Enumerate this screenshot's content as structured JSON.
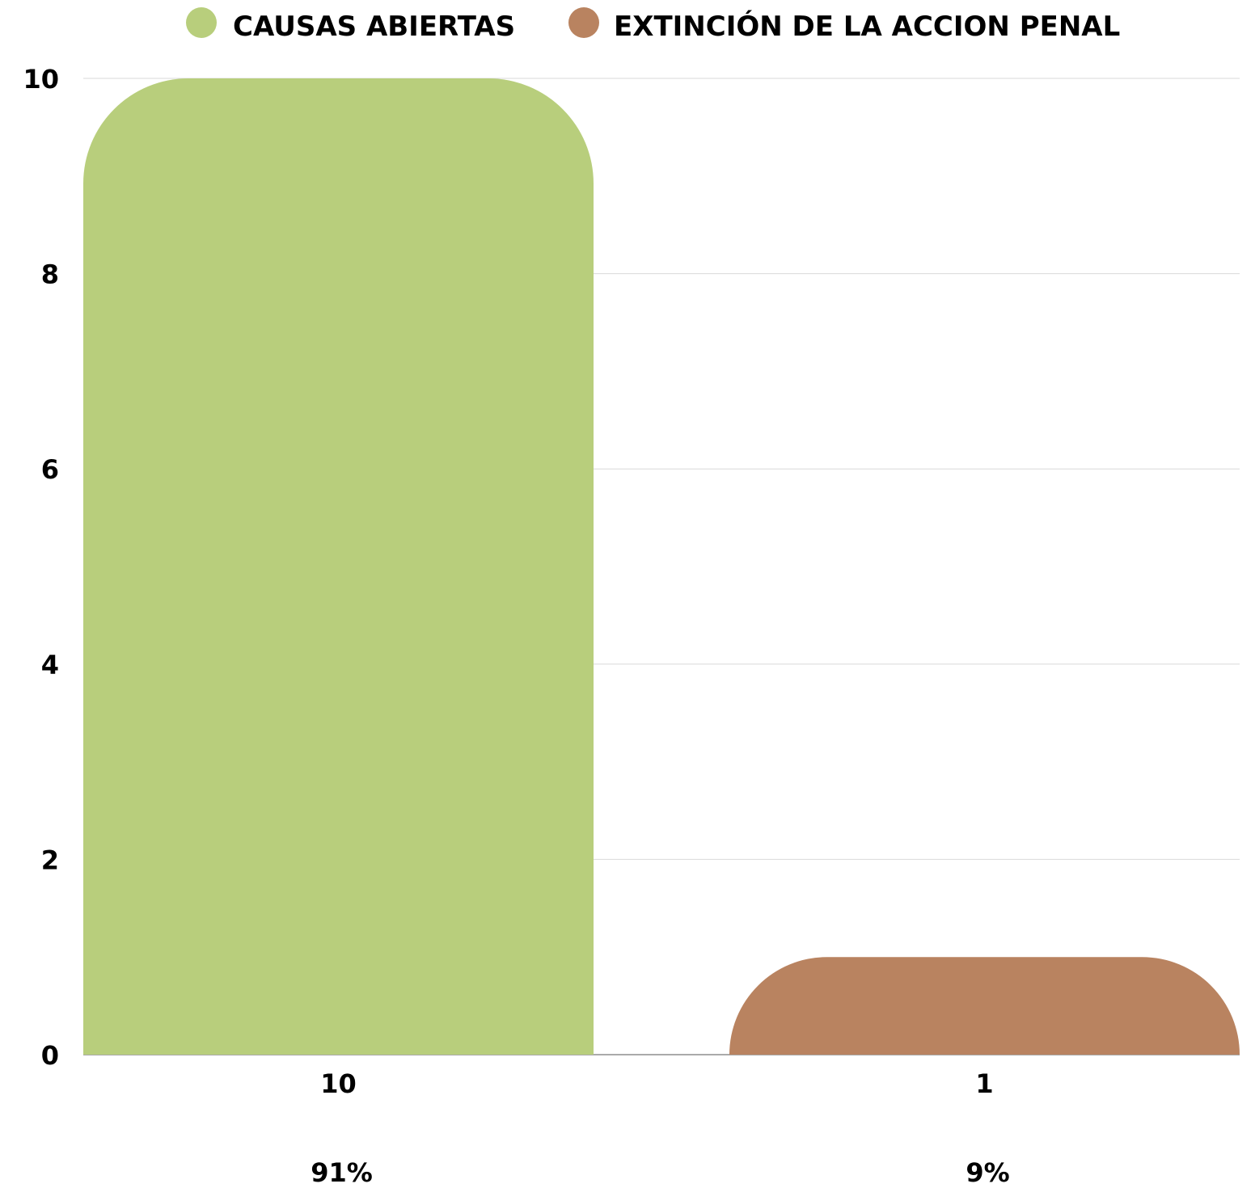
{
  "chart_data": {
    "type": "bar",
    "categories": [
      "10",
      "1"
    ],
    "percent_labels": [
      "91%",
      "9%"
    ],
    "series": [
      {
        "name": "CAUSAS ABIERTAS",
        "value": 10,
        "color": "#b8ce7c"
      },
      {
        "name": "EXTINCIÓN DE LA ACCION PENAL",
        "value": 1,
        "color": "#b98360"
      }
    ],
    "y_ticks": [
      "0",
      "2",
      "4",
      "6",
      "8",
      "10"
    ],
    "ylim": [
      0,
      10
    ],
    "grid": true,
    "legend_position": "top-center"
  }
}
